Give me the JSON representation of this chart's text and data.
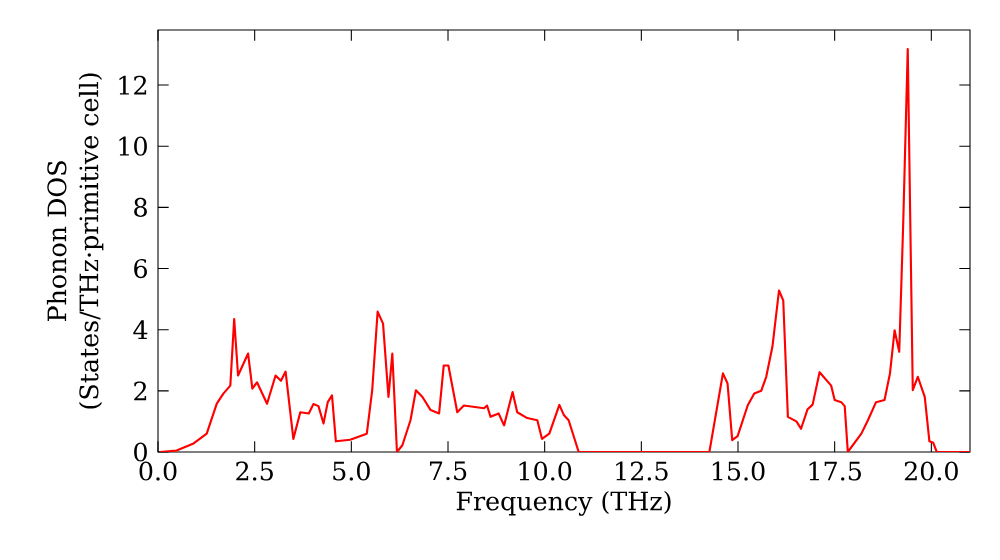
{
  "chart_data": {
    "type": "line",
    "xlabel": "Frequency (THz)",
    "ylabel": "Phonon DOS\n(States/THz·primitive cell)",
    "xlim": [
      0,
      21
    ],
    "ylim": [
      0,
      13.8
    ],
    "xticks": [
      {
        "value": 0,
        "label": "0.0"
      },
      2.5,
      {
        "value": 5,
        "label": "5.0"
      },
      7.5,
      {
        "value": 10,
        "label": "10.0"
      },
      12.5,
      {
        "value": 15,
        "label": "15.0"
      },
      17.5,
      {
        "value": 20,
        "label": "20.0"
      }
    ],
    "yticks": [
      0,
      2,
      4,
      6,
      8,
      10,
      12
    ],
    "marker": "none",
    "line_style": "solid",
    "series": [
      {
        "color": "#ff0000",
        "x": [
          0.05,
          0.48,
          0.92,
          1.26,
          1.52,
          1.69,
          1.87,
          1.97,
          2.07,
          2.33,
          2.44,
          2.56,
          2.82,
          3.04,
          3.18,
          3.3,
          3.5,
          3.68,
          3.9,
          4.02,
          4.15,
          4.28,
          4.39,
          4.5,
          4.6,
          4.97,
          5.4,
          5.54,
          5.68,
          5.82,
          5.96,
          6.06,
          6.18,
          6.32,
          6.53,
          6.67,
          6.84,
          7.05,
          7.27,
          7.39,
          7.51,
          7.74,
          7.91,
          8.43,
          8.51,
          8.6,
          8.81,
          8.95,
          9.17,
          9.29,
          9.55,
          9.81,
          9.93,
          10.12,
          10.38,
          10.5,
          10.62,
          10.88,
          14.26,
          14.61,
          14.73,
          14.85,
          14.99,
          15.25,
          15.42,
          15.6,
          15.73,
          15.89,
          16.06,
          16.17,
          16.29,
          16.51,
          16.63,
          16.8,
          16.93,
          17.11,
          17.41,
          17.5,
          17.67,
          17.76,
          17.84,
          18.19,
          18.36,
          18.57,
          18.79,
          18.93,
          19.05,
          19.17,
          19.27,
          19.39,
          19.52,
          19.65,
          19.83,
          19.95,
          20.05,
          20.14,
          21
        ],
        "values": [
          0,
          0.05,
          0.28,
          0.6,
          1.58,
          1.91,
          2.17,
          4.35,
          2.5,
          3.22,
          2.07,
          2.28,
          1.58,
          2.5,
          2.33,
          2.63,
          0.43,
          1.3,
          1.26,
          1.57,
          1.5,
          0.93,
          1.63,
          1.85,
          0.35,
          0.4,
          0.6,
          2.02,
          4.59,
          4.2,
          1.8,
          3.22,
          0,
          0.22,
          1.04,
          2.02,
          1.8,
          1.37,
          1.26,
          2.83,
          2.83,
          1.3,
          1.52,
          1.43,
          1.52,
          1.15,
          1.26,
          0.87,
          1.96,
          1.3,
          1.11,
          1.04,
          0.43,
          0.6,
          1.54,
          1.2,
          1.04,
          0,
          0,
          2.57,
          2.24,
          0.39,
          0.52,
          1.52,
          1.91,
          2.0,
          2.46,
          3.44,
          5.28,
          4.96,
          1.15,
          1.0,
          0.76,
          1.4,
          1.55,
          2.61,
          2.17,
          1.7,
          1.63,
          1.5,
          0,
          0.6,
          1.04,
          1.63,
          1.7,
          2.57,
          3.98,
          3.28,
          7.35,
          13.18,
          2.02,
          2.46,
          1.8,
          0.35,
          0.3,
          0,
          0
        ]
      }
    ]
  }
}
